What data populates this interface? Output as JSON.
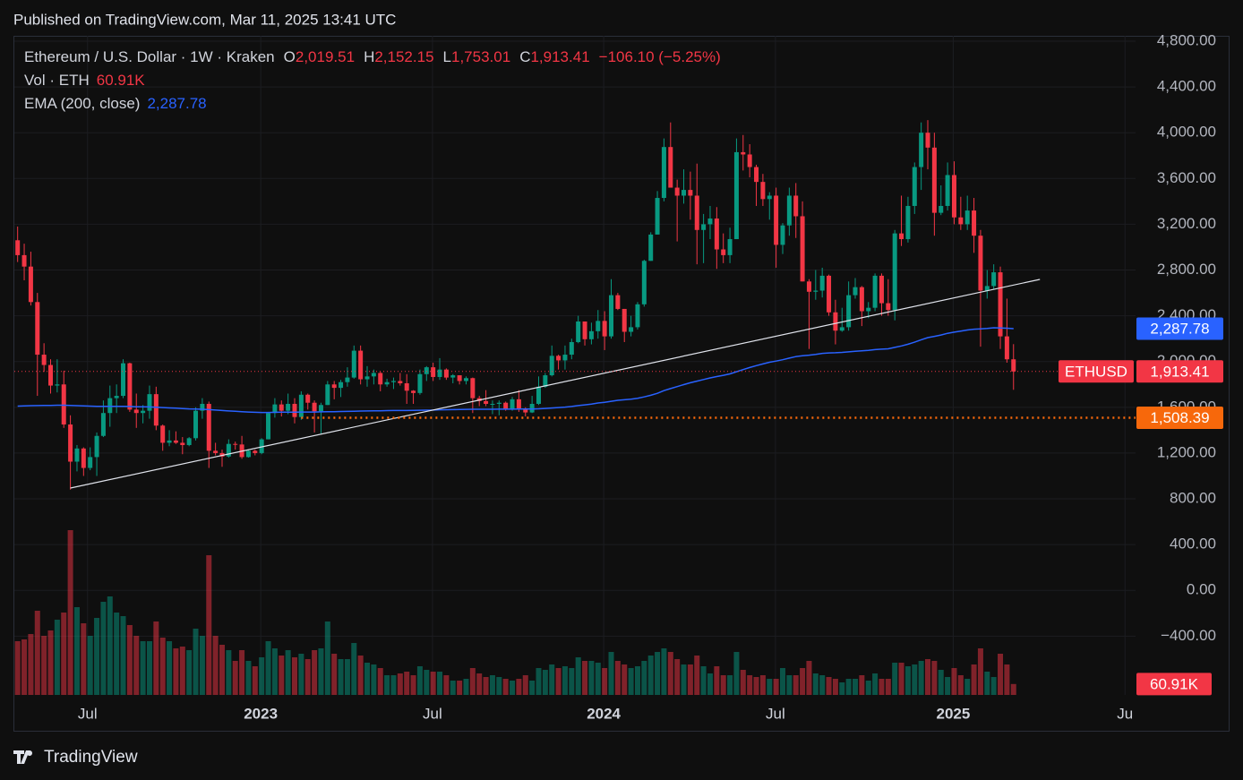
{
  "header": {
    "published": "Published on TradingView.com, Mar 11, 2025 13:41 UTC",
    "brand": "TradingView"
  },
  "chart_data": {
    "type": "candlestick",
    "legend": {
      "symbol": "Ethereum / U.S. Dollar · 1W · Kraken",
      "ohlc": [
        {
          "key": "O",
          "value": "2,019.51"
        },
        {
          "key": "H",
          "value": "2,152.15"
        },
        {
          "key": "L",
          "value": "1,753.01"
        },
        {
          "key": "C",
          "value": "1,913.41"
        }
      ],
      "change": "−106.10 (−5.25%)",
      "volume_name": "Vol · ETH",
      "volume_value": "60.91K",
      "ema_name": "EMA (200, close)",
      "ema_value": "2,287.78"
    },
    "price_badge_name": "ETHUSD",
    "up_color": "#089981",
    "down_color": "#f23645",
    "ema_color": "#2962ff",
    "ylim": [
      -914,
      4847
    ],
    "yticks": [
      {
        "value": 4800,
        "label": "4,800.00"
      },
      {
        "value": 4400,
        "label": "4,400.00"
      },
      {
        "value": 4000,
        "label": "4,000.00"
      },
      {
        "value": 3600,
        "label": "3,600.00"
      },
      {
        "value": 3200,
        "label": "3,200.00"
      },
      {
        "value": 2800,
        "label": "2,800.00"
      },
      {
        "value": 2400,
        "label": "2,400.00"
      },
      {
        "value": 2000,
        "label": "2,000.00"
      },
      {
        "value": 1600,
        "label": "1,600.00"
      },
      {
        "value": 1200,
        "label": "1,200.00"
      },
      {
        "value": 800,
        "label": "800.00"
      },
      {
        "value": 400,
        "label": "400.00"
      },
      {
        "value": 0,
        "label": "0.00"
      },
      {
        "value": -400,
        "label": "−400.00"
      }
    ],
    "xlim": [
      -0.5,
      169.5
    ],
    "xticks": [
      {
        "value": 10.6,
        "label": "Jul"
      },
      {
        "value": 36.86,
        "label": "2023"
      },
      {
        "value": 62.9,
        "label": "Jul"
      },
      {
        "value": 88.86,
        "label": "2024"
      },
      {
        "value": 114.9,
        "label": "Jul"
      },
      {
        "value": 141.86,
        "label": "2025"
      },
      {
        "value": 167.9,
        "label": "Ju"
      }
    ],
    "grid": true,
    "last_price": 1913.41,
    "level": {
      "value": 1508.39,
      "label": "1,508.39",
      "color": "#f7680b",
      "start": 43
    },
    "trend_line": {
      "x": [
        8,
        155
      ],
      "y": [
        894,
        2718
      ]
    },
    "candles": [
      [
        3060,
        3180,
        2870,
        2930
      ],
      [
        2930,
        3030,
        2710,
        2830
      ],
      [
        2830,
        2960,
        2490,
        2520
      ],
      [
        2520,
        2600,
        1700,
        2060
      ],
      [
        2060,
        2160,
        1910,
        1970
      ],
      [
        1970,
        2020,
        1720,
        1790
      ],
      [
        1790,
        2020,
        1730,
        1800
      ],
      [
        1800,
        1920,
        1420,
        1450
      ],
      [
        1450,
        1530,
        880,
        1125
      ],
      [
        1125,
        1270,
        1040,
        1240
      ],
      [
        1240,
        1250,
        1000,
        1070
      ],
      [
        1070,
        1250,
        1050,
        1165
      ],
      [
        1165,
        1380,
        1000,
        1350
      ],
      [
        1350,
        1660,
        1340,
        1550
      ],
      [
        1550,
        1790,
        1430,
        1680
      ],
      [
        1680,
        1800,
        1550,
        1700
      ],
      [
        1700,
        2020,
        1680,
        1985
      ],
      [
        1985,
        1990,
        1560,
        1580
      ],
      [
        1580,
        1720,
        1420,
        1550
      ],
      [
        1550,
        1620,
        1460,
        1570
      ],
      [
        1570,
        1790,
        1500,
        1715
      ],
      [
        1715,
        1780,
        1400,
        1440
      ],
      [
        1440,
        1450,
        1220,
        1290
      ],
      [
        1290,
        1400,
        1260,
        1310
      ],
      [
        1310,
        1390,
        1280,
        1290
      ],
      [
        1290,
        1340,
        1190,
        1270
      ],
      [
        1270,
        1340,
        1260,
        1330
      ],
      [
        1330,
        1600,
        1310,
        1570
      ],
      [
        1570,
        1680,
        1500,
        1630
      ],
      [
        1630,
        1650,
        1070,
        1220
      ],
      [
        1220,
        1290,
        1180,
        1200
      ],
      [
        1200,
        1230,
        1080,
        1170
      ],
      [
        1170,
        1320,
        1160,
        1280
      ],
      [
        1280,
        1300,
        1230,
        1275
      ],
      [
        1275,
        1350,
        1150,
        1165
      ],
      [
        1165,
        1230,
        1160,
        1220
      ],
      [
        1220,
        1230,
        1180,
        1200
      ],
      [
        1200,
        1330,
        1190,
        1320
      ],
      [
        1320,
        1560,
        1320,
        1550
      ],
      [
        1550,
        1680,
        1510,
        1625
      ],
      [
        1625,
        1660,
        1520,
        1570
      ],
      [
        1570,
        1720,
        1540,
        1630
      ],
      [
        1630,
        1680,
        1460,
        1515
      ],
      [
        1515,
        1740,
        1490,
        1710
      ],
      [
        1710,
        1720,
        1580,
        1640
      ],
      [
        1640,
        1660,
        1380,
        1565
      ],
      [
        1565,
        1640,
        1370,
        1620
      ],
      [
        1620,
        1830,
        1620,
        1800
      ],
      [
        1800,
        1830,
        1670,
        1770
      ],
      [
        1770,
        1840,
        1690,
        1820
      ],
      [
        1820,
        1950,
        1780,
        1860
      ],
      [
        1860,
        2140,
        1850,
        2095
      ],
      [
        2095,
        2140,
        1800,
        1845
      ],
      [
        1845,
        1960,
        1780,
        1870
      ],
      [
        1870,
        1930,
        1800,
        1900
      ],
      [
        1900,
        1910,
        1740,
        1800
      ],
      [
        1800,
        1850,
        1780,
        1820
      ],
      [
        1820,
        1860,
        1760,
        1830
      ],
      [
        1830,
        1900,
        1790,
        1810
      ],
      [
        1810,
        1890,
        1630,
        1745
      ],
      [
        1745,
        1750,
        1630,
        1725
      ],
      [
        1725,
        1930,
        1710,
        1890
      ],
      [
        1890,
        1960,
        1830,
        1950
      ],
      [
        1950,
        1990,
        1830,
        1865
      ],
      [
        1865,
        2030,
        1840,
        1930
      ],
      [
        1930,
        1940,
        1840,
        1860
      ],
      [
        1860,
        1890,
        1810,
        1880
      ],
      [
        1880,
        1880,
        1800,
        1830
      ],
      [
        1830,
        1870,
        1800,
        1855
      ],
      [
        1855,
        1860,
        1550,
        1680
      ],
      [
        1680,
        1700,
        1610,
        1655
      ],
      [
        1655,
        1750,
        1610,
        1630
      ],
      [
        1630,
        1660,
        1540,
        1630
      ],
      [
        1630,
        1660,
        1530,
        1640
      ],
      [
        1640,
        1650,
        1570,
        1580
      ],
      [
        1580,
        1690,
        1570,
        1670
      ],
      [
        1670,
        1750,
        1560,
        1580
      ],
      [
        1580,
        1600,
        1520,
        1555
      ],
      [
        1555,
        1700,
        1550,
        1630
      ],
      [
        1630,
        1870,
        1620,
        1780
      ],
      [
        1780,
        1900,
        1770,
        1880
      ],
      [
        1880,
        2140,
        1870,
        2050
      ],
      [
        2050,
        2060,
        1930,
        2010
      ],
      [
        2010,
        2140,
        1930,
        2060
      ],
      [
        2060,
        2200,
        2020,
        2170
      ],
      [
        2170,
        2400,
        2160,
        2350
      ],
      [
        2350,
        2350,
        2140,
        2195
      ],
      [
        2195,
        2340,
        2150,
        2265
      ],
      [
        2265,
        2450,
        2200,
        2355
      ],
      [
        2355,
        2440,
        2100,
        2220
      ],
      [
        2220,
        2720,
        2200,
        2580
      ],
      [
        2580,
        2600,
        2450,
        2460
      ],
      [
        2460,
        2460,
        2170,
        2260
      ],
      [
        2260,
        2400,
        2220,
        2300
      ],
      [
        2300,
        2520,
        2280,
        2500
      ],
      [
        2500,
        2890,
        2480,
        2880
      ],
      [
        2880,
        3130,
        2880,
        3110
      ],
      [
        3110,
        3490,
        3110,
        3430
      ],
      [
        3430,
        3950,
        3400,
        3875
      ],
      [
        3875,
        4090,
        3530,
        3520
      ],
      [
        3520,
        3590,
        3050,
        3450
      ],
      [
        3450,
        3680,
        3380,
        3500
      ],
      [
        3500,
        3660,
        3240,
        3450
      ],
      [
        3450,
        3730,
        2850,
        3150
      ],
      [
        3150,
        3290,
        2860,
        3200
      ],
      [
        3200,
        3360,
        3070,
        3250
      ],
      [
        3250,
        3350,
        2810,
        2980
      ],
      [
        2980,
        3120,
        2860,
        2930
      ],
      [
        2930,
        3170,
        2860,
        3070
      ],
      [
        3070,
        3950,
        3070,
        3830
      ],
      [
        3830,
        3980,
        3670,
        3810
      ],
      [
        3810,
        3900,
        3610,
        3700
      ],
      [
        3700,
        3720,
        3360,
        3570
      ],
      [
        3570,
        3640,
        3360,
        3420
      ],
      [
        3420,
        3480,
        3240,
        3450
      ],
      [
        3450,
        3520,
        2820,
        3020
      ],
      [
        3020,
        3210,
        2940,
        3190
      ],
      [
        3190,
        3520,
        3100,
        3450
      ],
      [
        3450,
        3560,
        3080,
        3270
      ],
      [
        3270,
        3400,
        2700,
        2700
      ],
      [
        2700,
        2720,
        2110,
        2610
      ],
      [
        2610,
        2800,
        2540,
        2620
      ],
      [
        2620,
        2820,
        2560,
        2750
      ],
      [
        2750,
        2760,
        2400,
        2430
      ],
      [
        2430,
        2540,
        2150,
        2270
      ],
      [
        2270,
        2470,
        2260,
        2300
      ],
      [
        2300,
        2700,
        2270,
        2580
      ],
      [
        2580,
        2730,
        2550,
        2650
      ],
      [
        2650,
        2660,
        2310,
        2440
      ],
      [
        2440,
        2520,
        2380,
        2470
      ],
      [
        2470,
        2770,
        2440,
        2750
      ],
      [
        2750,
        2770,
        2400,
        2510
      ],
      [
        2510,
        2720,
        2400,
        2450
      ],
      [
        2450,
        3150,
        2360,
        3120
      ],
      [
        3120,
        3450,
        3010,
        3070
      ],
      [
        3070,
        3440,
        3040,
        3360
      ],
      [
        3360,
        3740,
        3290,
        3700
      ],
      [
        3700,
        4090,
        3500,
        4000
      ],
      [
        4000,
        4110,
        3680,
        3870
      ],
      [
        3870,
        4000,
        3100,
        3300
      ],
      [
        3300,
        3540,
        3280,
        3360
      ],
      [
        3360,
        3740,
        3320,
        3630
      ],
      [
        3630,
        3750,
        3200,
        3260
      ],
      [
        3260,
        3440,
        3150,
        3200
      ],
      [
        3200,
        3450,
        3150,
        3320
      ],
      [
        3320,
        3430,
        2950,
        3100
      ],
      [
        3100,
        3150,
        2130,
        2620
      ],
      [
        2620,
        2800,
        2550,
        2660
      ],
      [
        2660,
        2850,
        2630,
        2780
      ],
      [
        2780,
        2830,
        2110,
        2220
      ],
      [
        2220,
        2550,
        1990,
        2019.51
      ],
      [
        2019.51,
        2152.15,
        1753.01,
        1913.41
      ]
    ],
    "volumes": [
      300,
      310,
      340,
      470,
      330,
      360,
      420,
      460,
      920,
      490,
      400,
      330,
      430,
      520,
      550,
      460,
      440,
      390,
      330,
      300,
      300,
      410,
      320,
      300,
      260,
      270,
      250,
      370,
      330,
      780,
      330,
      280,
      250,
      190,
      250,
      190,
      160,
      210,
      300,
      260,
      220,
      250,
      210,
      230,
      200,
      250,
      260,
      410,
      230,
      200,
      200,
      290,
      220,
      180,
      170,
      150,
      110,
      110,
      120,
      130,
      110,
      160,
      140,
      130,
      130,
      110,
      80,
      80,
      90,
      150,
      120,
      100,
      110,
      100,
      90,
      80,
      90,
      110,
      80,
      150,
      140,
      170,
      150,
      160,
      150,
      210,
      190,
      190,
      180,
      150,
      240,
      190,
      170,
      150,
      160,
      190,
      220,
      240,
      260,
      240,
      200,
      170,
      170,
      220,
      160,
      120,
      160,
      110,
      110,
      240,
      140,
      110,
      100,
      110,
      90,
      90,
      150,
      110,
      110,
      150,
      190,
      120,
      110,
      100,
      90,
      70,
      90,
      90,
      110,
      80,
      120,
      90,
      90,
      180,
      180,
      160,
      170,
      190,
      200,
      190,
      140,
      100,
      150,
      110,
      90,
      170,
      260,
      130,
      100,
      230,
      170,
      60.91
    ],
    "ema": [
      1610,
      1612,
      1614,
      1615,
      1616,
      1617,
      1618,
      1618,
      1616,
      1614,
      1612,
      1610,
      1609,
      1609,
      1608,
      1608,
      1608,
      1607,
      1605,
      1604,
      1603,
      1601,
      1598,
      1595,
      1592,
      1589,
      1586,
      1585,
      1583,
      1580,
      1576,
      1572,
      1568,
      1565,
      1562,
      1559,
      1556,
      1555,
      1555,
      1556,
      1557,
      1558,
      1558,
      1559,
      1559,
      1559,
      1560,
      1561,
      1562,
      1563,
      1564,
      1566,
      1567,
      1568,
      1569,
      1570,
      1571,
      1572,
      1572,
      1572,
      1573,
      1574,
      1575,
      1576,
      1578,
      1579,
      1580,
      1581,
      1582,
      1583,
      1583,
      1583,
      1583,
      1584,
      1584,
      1584,
      1585,
      1585,
      1585,
      1587,
      1590,
      1594,
      1598,
      1602,
      1607,
      1615,
      1621,
      1628,
      1638,
      1643,
      1653,
      1661,
      1666,
      1671,
      1679,
      1691,
      1705,
      1722,
      1746,
      1764,
      1781,
      1798,
      1815,
      1829,
      1843,
      1857,
      1869,
      1880,
      1892,
      1911,
      1930,
      1948,
      1964,
      1979,
      1994,
      2004,
      2016,
      2030,
      2043,
      2050,
      2056,
      2063,
      2071,
      2075,
      2077,
      2080,
      2085,
      2090,
      2093,
      2097,
      2104,
      2108,
      2111,
      2124,
      2136,
      2151,
      2169,
      2190,
      2209,
      2220,
      2232,
      2247,
      2257,
      2266,
      2276,
      2283,
      2286,
      2290,
      2295,
      2294,
      2291,
      2287.78
    ]
  }
}
